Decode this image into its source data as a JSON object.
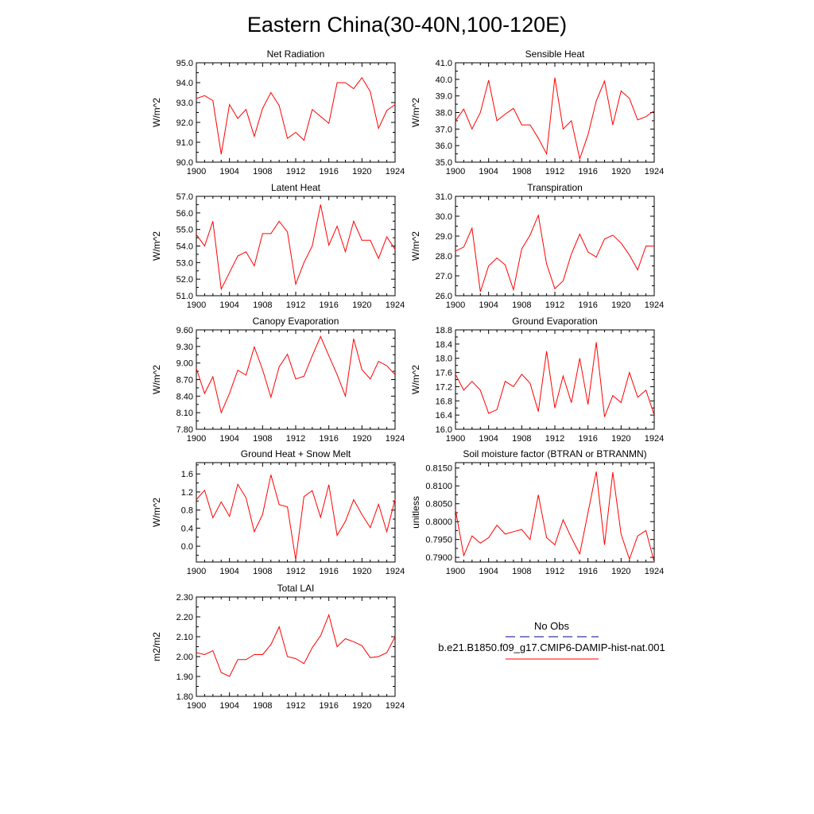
{
  "figure": {
    "title": "Eastern China(30-40N,100-120E)",
    "legend": {
      "items": [
        {
          "label": "No Obs",
          "color": "#00008b",
          "dash": "dashed"
        },
        {
          "label": "b.e21.B1850.f09_g17.CMIP6-DAMIP-hist-nat.001",
          "color": "#ff0000",
          "dash": "solid"
        }
      ]
    }
  },
  "chart_data": [
    {
      "type": "line",
      "title": "Net Radiation",
      "ylabel": "W/m^2",
      "xlabel": "",
      "xlim": [
        1900,
        1924
      ],
      "ylim": [
        90.0,
        95.0
      ],
      "xticks": [
        1900,
        1904,
        1908,
        1912,
        1916,
        1920,
        1924
      ],
      "yticks": [
        90.0,
        91.0,
        92.0,
        93.0,
        94.0,
        95.0
      ],
      "yticklabels": [
        "90.0",
        "91.0",
        "92.0",
        "93.0",
        "94.0",
        "95.0"
      ],
      "series": [
        {
          "color": "#ff0000",
          "x": [
            1900,
            1901,
            1902,
            1903,
            1904,
            1905,
            1906,
            1907,
            1908,
            1909,
            1910,
            1911,
            1912,
            1913,
            1914,
            1915,
            1916,
            1917,
            1918,
            1919,
            1920,
            1921,
            1922,
            1923,
            1924
          ],
          "values": [
            93.2,
            93.35,
            93.1,
            90.4,
            92.9,
            92.2,
            92.65,
            91.3,
            92.7,
            93.5,
            92.85,
            91.2,
            91.5,
            91.1,
            92.65,
            92.3,
            91.95,
            94.0,
            94.0,
            93.7,
            94.25,
            93.55,
            91.7,
            92.6,
            92.9
          ]
        }
      ]
    },
    {
      "type": "line",
      "title": "Sensible Heat",
      "ylabel": "W/m^2",
      "xlabel": "",
      "xlim": [
        1900,
        1924
      ],
      "ylim": [
        35.0,
        41.0
      ],
      "xticks": [
        1900,
        1904,
        1908,
        1912,
        1916,
        1920,
        1924
      ],
      "yticks": [
        35.0,
        36.0,
        37.0,
        38.0,
        39.0,
        40.0,
        41.0
      ],
      "yticklabels": [
        "35.0",
        "36.0",
        "37.0",
        "38.0",
        "39.0",
        "40.0",
        "41.0"
      ],
      "series": [
        {
          "color": "#ff0000",
          "x": [
            1900,
            1901,
            1902,
            1903,
            1904,
            1905,
            1906,
            1907,
            1908,
            1909,
            1910,
            1911,
            1912,
            1913,
            1914,
            1915,
            1916,
            1917,
            1918,
            1919,
            1920,
            1921,
            1922,
            1923,
            1924
          ],
          "values": [
            37.5,
            38.2,
            37.0,
            38.0,
            39.95,
            37.5,
            37.9,
            38.25,
            37.25,
            37.25,
            36.45,
            35.5,
            40.1,
            37.0,
            37.5,
            35.2,
            36.65,
            38.7,
            39.9,
            37.25,
            39.3,
            38.85,
            37.55,
            37.75,
            38.1
          ]
        }
      ]
    },
    {
      "type": "line",
      "title": "Latent Heat",
      "ylabel": "W/m^2",
      "xlabel": "",
      "xlim": [
        1900,
        1924
      ],
      "ylim": [
        51.0,
        57.0
      ],
      "xticks": [
        1900,
        1904,
        1908,
        1912,
        1916,
        1920,
        1924
      ],
      "yticks": [
        51.0,
        52.0,
        53.0,
        54.0,
        55.0,
        56.0,
        57.0
      ],
      "yticklabels": [
        "51.0",
        "52.0",
        "53.0",
        "54.0",
        "55.0",
        "56.0",
        "57.0"
      ],
      "series": [
        {
          "color": "#ff0000",
          "x": [
            1900,
            1901,
            1902,
            1903,
            1904,
            1905,
            1906,
            1907,
            1908,
            1909,
            1910,
            1911,
            1912,
            1913,
            1914,
            1915,
            1916,
            1917,
            1918,
            1919,
            1920,
            1921,
            1922,
            1923,
            1924
          ],
          "values": [
            54.7,
            54.0,
            55.5,
            51.4,
            52.4,
            53.4,
            53.65,
            52.8,
            54.75,
            54.75,
            55.5,
            54.85,
            51.7,
            53.0,
            54.0,
            56.5,
            54.05,
            55.2,
            53.65,
            55.5,
            54.35,
            54.35,
            53.25,
            54.55,
            53.8
          ]
        }
      ]
    },
    {
      "type": "line",
      "title": "Transpiration",
      "ylabel": "W/m^2",
      "xlabel": "",
      "xlim": [
        1900,
        1924
      ],
      "ylim": [
        26.0,
        31.0
      ],
      "xticks": [
        1900,
        1904,
        1908,
        1912,
        1916,
        1920,
        1924
      ],
      "yticks": [
        26.0,
        27.0,
        28.0,
        29.0,
        30.0,
        31.0
      ],
      "yticklabels": [
        "26.0",
        "27.0",
        "28.0",
        "29.0",
        "30.0",
        "31.0"
      ],
      "series": [
        {
          "color": "#ff0000",
          "x": [
            1900,
            1901,
            1902,
            1903,
            1904,
            1905,
            1906,
            1907,
            1908,
            1909,
            1910,
            1911,
            1912,
            1913,
            1914,
            1915,
            1916,
            1917,
            1918,
            1919,
            1920,
            1921,
            1922,
            1923,
            1924
          ],
          "values": [
            28.25,
            28.45,
            29.4,
            26.2,
            27.5,
            27.9,
            27.55,
            26.3,
            28.35,
            29.05,
            30.05,
            27.6,
            26.35,
            26.75,
            28.1,
            29.1,
            28.2,
            27.95,
            28.85,
            29.05,
            28.65,
            28.05,
            27.3,
            28.5,
            28.5
          ]
        }
      ]
    },
    {
      "type": "line",
      "title": "Canopy Evaporation",
      "ylabel": "W/m^2",
      "xlabel": "",
      "xlim": [
        1900,
        1924
      ],
      "ylim": [
        7.8,
        9.6
      ],
      "xticks": [
        1900,
        1904,
        1908,
        1912,
        1916,
        1920,
        1924
      ],
      "yticks": [
        7.8,
        8.1,
        8.4,
        8.7,
        9.0,
        9.3,
        9.6
      ],
      "yticklabels": [
        "7.80",
        "8.10",
        "8.40",
        "8.70",
        "9.00",
        "9.30",
        "9.60"
      ],
      "series": [
        {
          "color": "#ff0000",
          "x": [
            1900,
            1901,
            1902,
            1903,
            1904,
            1905,
            1906,
            1907,
            1908,
            1909,
            1910,
            1911,
            1912,
            1913,
            1914,
            1915,
            1916,
            1917,
            1918,
            1919,
            1920,
            1921,
            1922,
            1923,
            1924
          ],
          "values": [
            8.9,
            8.45,
            8.75,
            8.1,
            8.45,
            8.87,
            8.78,
            9.29,
            8.88,
            8.38,
            8.93,
            9.16,
            8.71,
            8.76,
            9.13,
            9.48,
            9.13,
            8.79,
            8.4,
            9.44,
            8.88,
            8.71,
            9.03,
            8.95,
            8.79
          ]
        }
      ]
    },
    {
      "type": "line",
      "title": "Ground Evaporation",
      "ylabel": "W/m^2",
      "xlabel": "",
      "xlim": [
        1900,
        1924
      ],
      "ylim": [
        16.0,
        18.8
      ],
      "xticks": [
        1900,
        1904,
        1908,
        1912,
        1916,
        1920,
        1924
      ],
      "yticks": [
        16.0,
        16.4,
        16.8,
        17.2,
        17.6,
        18.0,
        18.4,
        18.8
      ],
      "yticklabels": [
        "16.0",
        "16.4",
        "16.8",
        "17.2",
        "17.6",
        "18.0",
        "18.4",
        "18.8"
      ],
      "series": [
        {
          "color": "#ff0000",
          "x": [
            1900,
            1901,
            1902,
            1903,
            1904,
            1905,
            1906,
            1907,
            1908,
            1909,
            1910,
            1911,
            1912,
            1913,
            1914,
            1915,
            1916,
            1917,
            1918,
            1919,
            1920,
            1921,
            1922,
            1923,
            1924
          ],
          "values": [
            17.55,
            17.1,
            17.35,
            17.1,
            16.45,
            16.55,
            17.35,
            17.2,
            17.55,
            17.3,
            16.5,
            18.2,
            16.6,
            17.5,
            16.75,
            18.0,
            16.7,
            18.45,
            16.35,
            16.95,
            16.75,
            17.6,
            16.9,
            17.1,
            16.4
          ]
        }
      ]
    },
    {
      "type": "line",
      "title": "Ground Heat + Snow Melt",
      "ylabel": "W/m^2",
      "xlabel": "",
      "xlim": [
        1900,
        1924
      ],
      "ylim": [
        -0.35,
        1.85
      ],
      "xticks": [
        1900,
        1904,
        1908,
        1912,
        1916,
        1920,
        1924
      ],
      "yticks": [
        0.0,
        0.4,
        0.8,
        1.2,
        1.6
      ],
      "yticklabels": [
        "0.0",
        "0.4",
        "0.8",
        "1.2",
        "1.6"
      ],
      "series": [
        {
          "color": "#ff0000",
          "x": [
            1900,
            1901,
            1902,
            1903,
            1904,
            1905,
            1906,
            1907,
            1908,
            1909,
            1910,
            1911,
            1912,
            1913,
            1914,
            1915,
            1916,
            1917,
            1918,
            1919,
            1920,
            1921,
            1922,
            1923,
            1924
          ],
          "values": [
            1.03,
            1.24,
            0.63,
            0.98,
            0.66,
            1.37,
            1.07,
            0.32,
            0.7,
            1.58,
            0.92,
            0.87,
            -0.3,
            1.1,
            1.23,
            0.64,
            1.36,
            0.24,
            0.55,
            1.03,
            0.7,
            0.41,
            0.93,
            0.32,
            1.04
          ]
        }
      ]
    },
    {
      "type": "line",
      "title": "Soil moisture factor (BTRAN or BTRANMN)",
      "ylabel": "unitless",
      "xlabel": "",
      "xlim": [
        1900,
        1924
      ],
      "ylim": [
        0.7887,
        0.8165
      ],
      "xticks": [
        1900,
        1904,
        1908,
        1912,
        1916,
        1920,
        1924
      ],
      "yticks": [
        0.79,
        0.795,
        0.8,
        0.805,
        0.81,
        0.815
      ],
      "yticklabels": [
        "0.7900",
        "0.7950",
        "0.8000",
        "0.8050",
        "0.8100",
        "0.8150"
      ],
      "series": [
        {
          "color": "#ff0000",
          "x": [
            1900,
            1901,
            1902,
            1903,
            1904,
            1905,
            1906,
            1907,
            1908,
            1909,
            1910,
            1911,
            1912,
            1913,
            1914,
            1915,
            1916,
            1917,
            1918,
            1919,
            1920,
            1921,
            1922,
            1923,
            1924
          ],
          "values": [
            0.8033,
            0.7905,
            0.796,
            0.794,
            0.7955,
            0.799,
            0.7965,
            0.7972,
            0.7978,
            0.795,
            0.8075,
            0.7955,
            0.7935,
            0.8005,
            0.7955,
            0.791,
            0.8025,
            0.814,
            0.7935,
            0.8138,
            0.7965,
            0.7895,
            0.796,
            0.7975,
            0.7887
          ]
        }
      ]
    },
    {
      "type": "line",
      "title": "Total LAI",
      "ylabel": "m2/m2",
      "xlabel": "",
      "xlim": [
        1900,
        1924
      ],
      "ylim": [
        1.8,
        2.3
      ],
      "xticks": [
        1900,
        1904,
        1908,
        1912,
        1916,
        1920,
        1924
      ],
      "yticks": [
        1.8,
        1.9,
        2.0,
        2.1,
        2.2,
        2.3
      ],
      "yticklabels": [
        "1.80",
        "1.90",
        "2.00",
        "2.10",
        "2.20",
        "2.30"
      ],
      "series": [
        {
          "color": "#ff0000",
          "x": [
            1900,
            1901,
            1902,
            1903,
            1904,
            1905,
            1906,
            1907,
            1908,
            1909,
            1910,
            1911,
            1912,
            1913,
            1914,
            1915,
            1916,
            1917,
            1918,
            1919,
            1920,
            1921,
            1922,
            1923,
            1924
          ],
          "values": [
            2.02,
            2.01,
            2.03,
            1.92,
            1.9,
            1.985,
            1.985,
            2.01,
            2.01,
            2.06,
            2.15,
            2.0,
            1.99,
            1.965,
            2.045,
            2.105,
            2.21,
            2.05,
            2.09,
            2.075,
            2.055,
            1.995,
            2.0,
            2.02,
            2.1
          ]
        }
      ]
    }
  ]
}
